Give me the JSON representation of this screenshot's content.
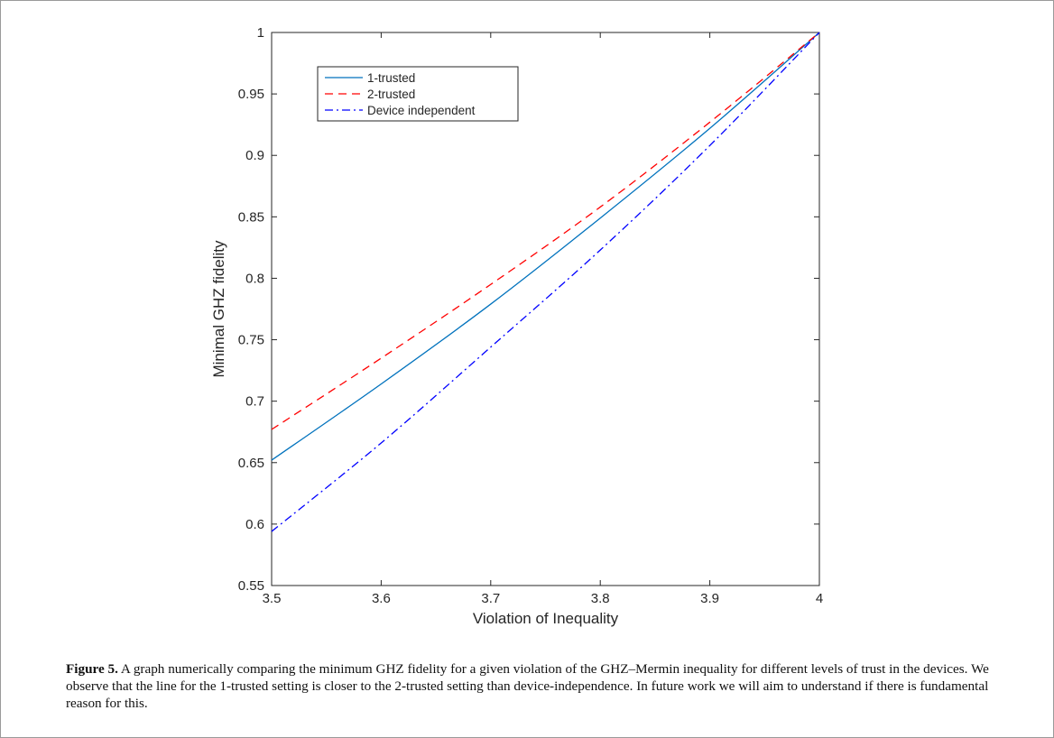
{
  "chart_data": {
    "type": "line",
    "xlabel": "Violation of Inequality",
    "ylabel": "Minimal GHZ fidelity",
    "xlim": [
      3.5,
      4
    ],
    "ylim": [
      0.55,
      1
    ],
    "xticks": [
      "3.5",
      "3.6",
      "3.7",
      "3.8",
      "3.9",
      "4"
    ],
    "yticks": [
      "0.55",
      "0.6",
      "0.65",
      "0.7",
      "0.75",
      "0.8",
      "0.85",
      "0.9",
      "0.95",
      "1"
    ],
    "legend_position": "top-left",
    "grid": false,
    "series": [
      {
        "name": "1-trusted",
        "color": "#0072BD",
        "style": "solid",
        "x": [
          3.5,
          3.6,
          3.7,
          3.8,
          3.9,
          4.0
        ],
        "y": [
          0.652,
          0.714,
          0.779,
          0.849,
          0.922,
          1.0
        ]
      },
      {
        "name": "2-trusted",
        "color": "#FF0000",
        "style": "dashed",
        "x": [
          3.5,
          3.6,
          3.7,
          3.8,
          3.9,
          4.0
        ],
        "y": [
          0.677,
          0.735,
          0.795,
          0.858,
          0.927,
          1.0
        ]
      },
      {
        "name": "Device independent",
        "color": "#0000FF",
        "style": "dashdot",
        "x": [
          3.5,
          3.6,
          3.7,
          3.8,
          3.9,
          4.0
        ],
        "y": [
          0.594,
          0.666,
          0.744,
          0.823,
          0.908,
          1.0
        ]
      }
    ]
  },
  "caption": {
    "label": "Figure 5.",
    "text": " A graph numerically comparing the minimum GHZ fidelity for a given violation of the GHZ–Mermin inequality for different levels of trust in the devices. We observe that the line for the 1-trusted setting is closer to the 2-trusted setting than device-independence. In future work we will aim to understand if there is fundamental reason for this."
  }
}
